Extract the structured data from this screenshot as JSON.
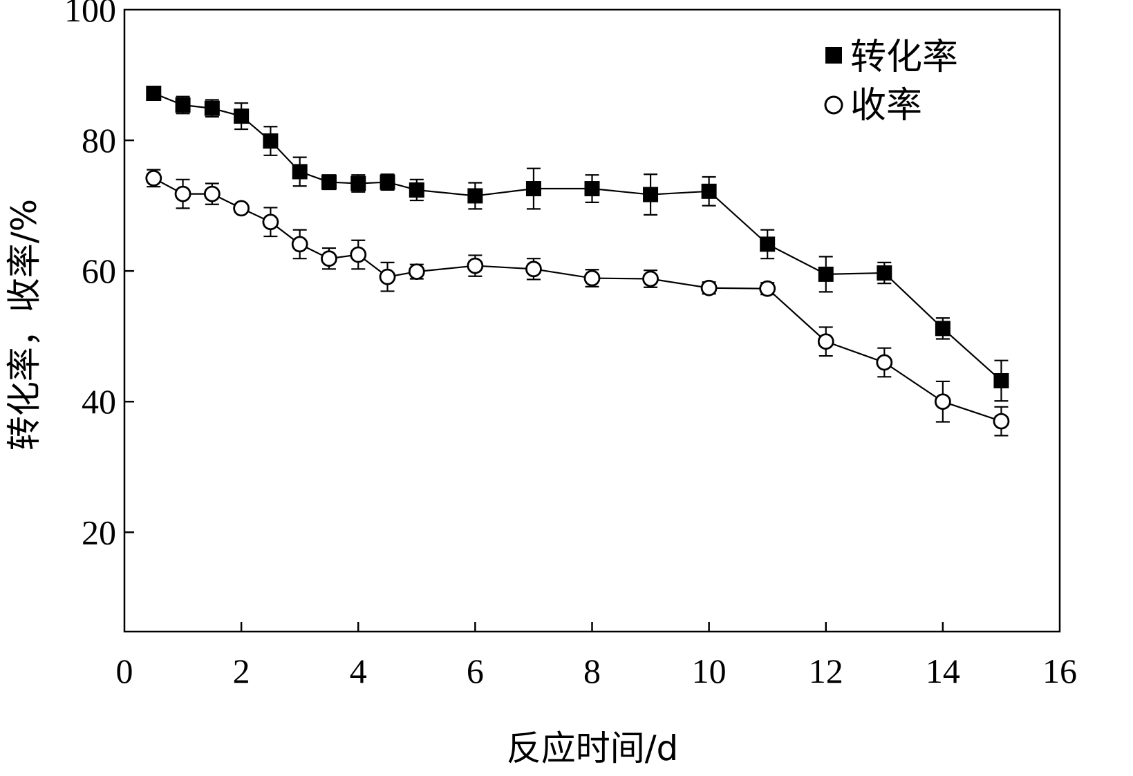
{
  "chart_data": {
    "type": "line",
    "title": "",
    "xlabel": "反应时间/d",
    "ylabel": "转化率，收率/%",
    "xlim": [
      0,
      16
    ],
    "ylim": [
      4.8,
      100
    ],
    "xticks": [
      "0",
      "2",
      "4",
      "6",
      "8",
      "10",
      "12",
      "14",
      "16"
    ],
    "yticks": [
      "20",
      "40",
      "60",
      "80",
      "100"
    ],
    "grid": false,
    "legend_position": "top-right",
    "x": [
      0.5,
      1,
      1.5,
      2,
      2.5,
      3,
      3.5,
      4,
      4.5,
      5,
      6,
      7,
      8,
      9,
      10,
      11,
      12,
      13,
      14,
      15
    ],
    "series": [
      {
        "name": "转化率",
        "marker": "filled-square",
        "color": "#000000",
        "values": [
          87.2,
          85.4,
          84.9,
          83.7,
          79.9,
          75.2,
          73.6,
          73.4,
          73.6,
          72.4,
          71.5,
          72.6,
          72.6,
          71.7,
          72.2,
          64.1,
          59.5,
          59.7,
          51.2,
          43.2
        ],
        "errors": [
          1.0,
          1.3,
          1.3,
          2.0,
          2.2,
          2.2,
          1.1,
          1.3,
          1.2,
          1.6,
          2.0,
          3.1,
          2.1,
          3.1,
          2.2,
          2.2,
          2.7,
          1.6,
          1.6,
          3.1
        ]
      },
      {
        "name": "收率",
        "marker": "open-circle",
        "color": "#000000",
        "values": [
          74.2,
          71.8,
          71.8,
          69.6,
          67.5,
          64.1,
          61.9,
          62.5,
          59.1,
          59.9,
          60.8,
          60.3,
          58.9,
          58.8,
          57.4,
          57.3,
          49.2,
          46.0,
          40.0,
          37.0
        ],
        "errors": [
          1.3,
          2.2,
          1.6,
          0.6,
          2.2,
          2.2,
          1.6,
          2.2,
          2.2,
          1.1,
          1.6,
          1.6,
          1.3,
          1.3,
          0.9,
          0.9,
          2.2,
          2.2,
          3.1,
          2.2
        ]
      }
    ]
  }
}
